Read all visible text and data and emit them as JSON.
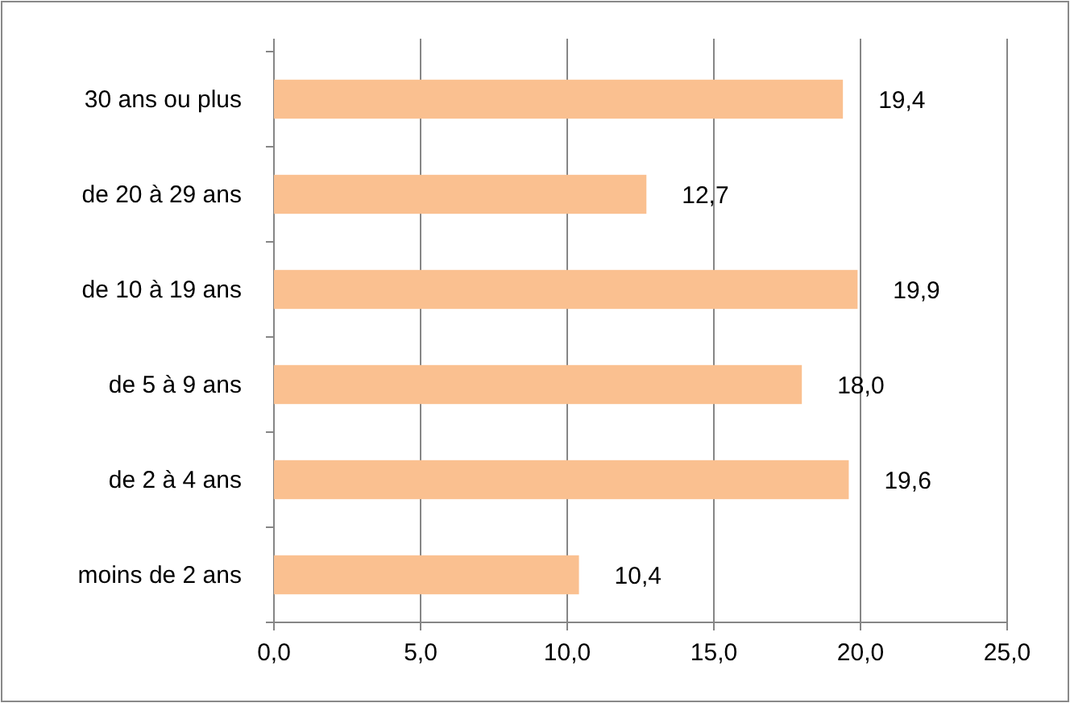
{
  "chart_data": {
    "type": "bar",
    "orientation": "horizontal",
    "categories": [
      "30 ans ou plus",
      "de 20 à 29 ans",
      "de 10 à 19 ans",
      "de 5 à 9 ans",
      "de 2 à 4 ans",
      "moins de 2 ans"
    ],
    "values": [
      19.4,
      12.7,
      19.9,
      18.0,
      19.6,
      10.4
    ],
    "value_labels": [
      "19,4",
      "12,7",
      "19,9",
      "18,0",
      "19,6",
      "10,4"
    ],
    "color": "#fac090",
    "xlim": [
      0,
      25
    ],
    "xticks": [
      {
        "value": 0,
        "label": "0,0"
      },
      {
        "value": 5,
        "label": "5,0"
      },
      {
        "value": 10,
        "label": "10,0"
      },
      {
        "value": 15,
        "label": "15,0"
      },
      {
        "value": 20,
        "label": "20,0"
      },
      {
        "value": 25,
        "label": "25,0"
      }
    ],
    "grid": "x"
  }
}
